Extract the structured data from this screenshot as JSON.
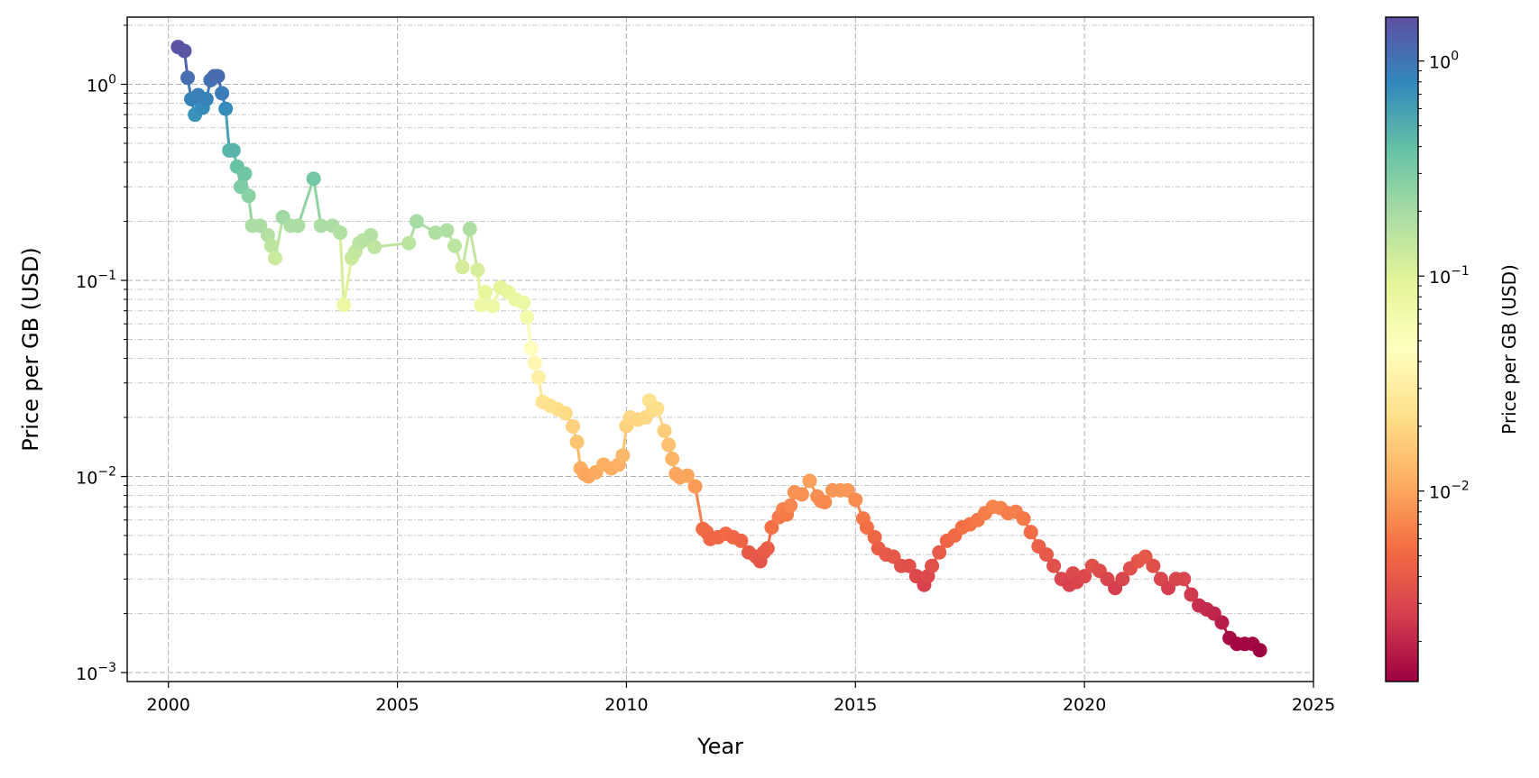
{
  "chart_data": {
    "type": "line",
    "title": "",
    "xlabel": "Year",
    "ylabel": "Price per GB (USD)",
    "xlim": [
      1999.1,
      2025
    ],
    "ylim": [
      0.0009,
      2.2
    ],
    "yscale": "log",
    "grid": true,
    "legend": "none",
    "x_ticks": [
      "2000",
      "2005",
      "2010",
      "2015",
      "2020",
      "2025"
    ],
    "y_ticks": [
      {
        "value": 1,
        "base": "10",
        "exp": "0"
      },
      {
        "value": 0.1,
        "base": "10",
        "exp": "−1"
      },
      {
        "value": 0.01,
        "base": "10",
        "exp": "−2"
      },
      {
        "value": 0.001,
        "base": "10",
        "exp": "−3"
      }
    ],
    "colormap": "Spectral",
    "colorbar": {
      "label": "Price per GB (USD)",
      "range": [
        0.0013,
        1.6
      ],
      "scale": "log",
      "ticks": [
        {
          "value": 1,
          "base": "10",
          "exp": "0"
        },
        {
          "value": 0.1,
          "base": "10",
          "exp": "−1"
        },
        {
          "value": 0.01,
          "base": "10",
          "exp": "−2"
        }
      ]
    },
    "series": [
      {
        "x": [
          2000.21,
          2000.35,
          2000.42,
          2000.5,
          2000.58,
          2000.65,
          2000.75,
          2000.83,
          2000.92,
          2001.0,
          2001.08,
          2001.17,
          2001.25,
          2001.33,
          2001.42,
          2001.5,
          2001.58,
          2001.67,
          2001.75,
          2001.83,
          2002.0,
          2002.17,
          2002.25,
          2002.33,
          2002.5,
          2002.67,
          2002.83,
          2003.17,
          2003.33,
          2003.58,
          2003.75,
          2003.83,
          2004.0,
          2004.08,
          2004.17,
          2004.25,
          2004.42,
          2004.5,
          2005.25,
          2005.42,
          2005.83,
          2006.08,
          2006.25,
          2006.42,
          2006.58,
          2006.75,
          2006.83,
          2006.92,
          2007.08,
          2007.25,
          2007.42,
          2007.58,
          2007.75,
          2007.83,
          2007.92,
          2008.0,
          2008.08,
          2008.17,
          2008.33,
          2008.5,
          2008.67,
          2008.83,
          2008.92,
          2009.0,
          2009.08,
          2009.17,
          2009.33,
          2009.5,
          2009.67,
          2009.83,
          2009.92,
          2010.0,
          2010.08,
          2010.25,
          2010.42,
          2010.5,
          2010.58,
          2010.67,
          2010.83,
          2010.92,
          2011.0,
          2011.08,
          2011.17,
          2011.33,
          2011.5,
          2011.67,
          2011.75,
          2011.83,
          2012.0,
          2012.17,
          2012.33,
          2012.5,
          2012.67,
          2012.83,
          2012.92,
          2013.0,
          2013.08,
          2013.17,
          2013.33,
          2013.42,
          2013.5,
          2013.58,
          2013.67,
          2013.83,
          2014.0,
          2014.17,
          2014.25,
          2014.33,
          2014.5,
          2014.67,
          2014.83,
          2015.0,
          2015.17,
          2015.25,
          2015.42,
          2015.5,
          2015.67,
          2015.83,
          2016.0,
          2016.17,
          2016.33,
          2016.5,
          2016.58,
          2016.67,
          2016.83,
          2017.0,
          2017.17,
          2017.33,
          2017.5,
          2017.67,
          2017.83,
          2018.0,
          2018.17,
          2018.33,
          2018.5,
          2018.67,
          2018.83,
          2019.0,
          2019.17,
          2019.33,
          2019.5,
          2019.67,
          2019.75,
          2019.83,
          2020.0,
          2020.17,
          2020.33,
          2020.5,
          2020.67,
          2020.83,
          2021.0,
          2021.17,
          2021.33,
          2021.5,
          2021.67,
          2021.83,
          2022.0,
          2022.17,
          2022.33,
          2022.5,
          2022.67,
          2022.83,
          2023.0,
          2023.17,
          2023.33,
          2023.5,
          2023.67,
          2023.83
        ],
        "y": [
          1.55,
          1.48,
          1.08,
          0.84,
          0.7,
          0.88,
          0.76,
          0.84,
          1.05,
          1.1,
          1.1,
          0.9,
          0.75,
          0.46,
          0.46,
          0.38,
          0.3,
          0.35,
          0.27,
          0.19,
          0.19,
          0.17,
          0.15,
          0.13,
          0.21,
          0.19,
          0.19,
          0.33,
          0.19,
          0.19,
          0.175,
          0.075,
          0.13,
          0.14,
          0.155,
          0.16,
          0.17,
          0.148,
          0.155,
          0.2,
          0.175,
          0.18,
          0.15,
          0.117,
          0.183,
          0.113,
          0.075,
          0.087,
          0.074,
          0.092,
          0.087,
          0.08,
          0.077,
          0.065,
          0.045,
          0.038,
          0.032,
          0.024,
          0.023,
          0.022,
          0.021,
          0.018,
          0.015,
          0.011,
          0.0103,
          0.01,
          0.0105,
          0.0115,
          0.011,
          0.0115,
          0.0128,
          0.0181,
          0.02,
          0.0195,
          0.02,
          0.0244,
          0.0218,
          0.0222,
          0.0171,
          0.0145,
          0.0123,
          0.0103,
          0.0099,
          0.0101,
          0.0089,
          0.0054,
          0.0052,
          0.0048,
          0.0049,
          0.0051,
          0.0049,
          0.0047,
          0.0041,
          0.0039,
          0.0037,
          0.0041,
          0.0043,
          0.0055,
          0.0062,
          0.0068,
          0.0064,
          0.0071,
          0.0083,
          0.0081,
          0.0095,
          0.0079,
          0.0075,
          0.0074,
          0.0085,
          0.0085,
          0.0085,
          0.0076,
          0.0061,
          0.0055,
          0.0049,
          0.0043,
          0.004,
          0.0039,
          0.0035,
          0.0035,
          0.0031,
          0.0028,
          0.0031,
          0.0035,
          0.0041,
          0.0047,
          0.005,
          0.0055,
          0.0057,
          0.006,
          0.0065,
          0.007,
          0.0069,
          0.0065,
          0.0066,
          0.0061,
          0.0052,
          0.0044,
          0.004,
          0.0035,
          0.003,
          0.0028,
          0.0032,
          0.0029,
          0.0031,
          0.0035,
          0.0033,
          0.003,
          0.0027,
          0.003,
          0.0034,
          0.0037,
          0.0039,
          0.0035,
          0.003,
          0.0027,
          0.003,
          0.003,
          0.0025,
          0.0022,
          0.0021,
          0.002,
          0.0018,
          0.0015,
          0.0014,
          0.0014,
          0.0014,
          0.0013
        ]
      }
    ]
  }
}
